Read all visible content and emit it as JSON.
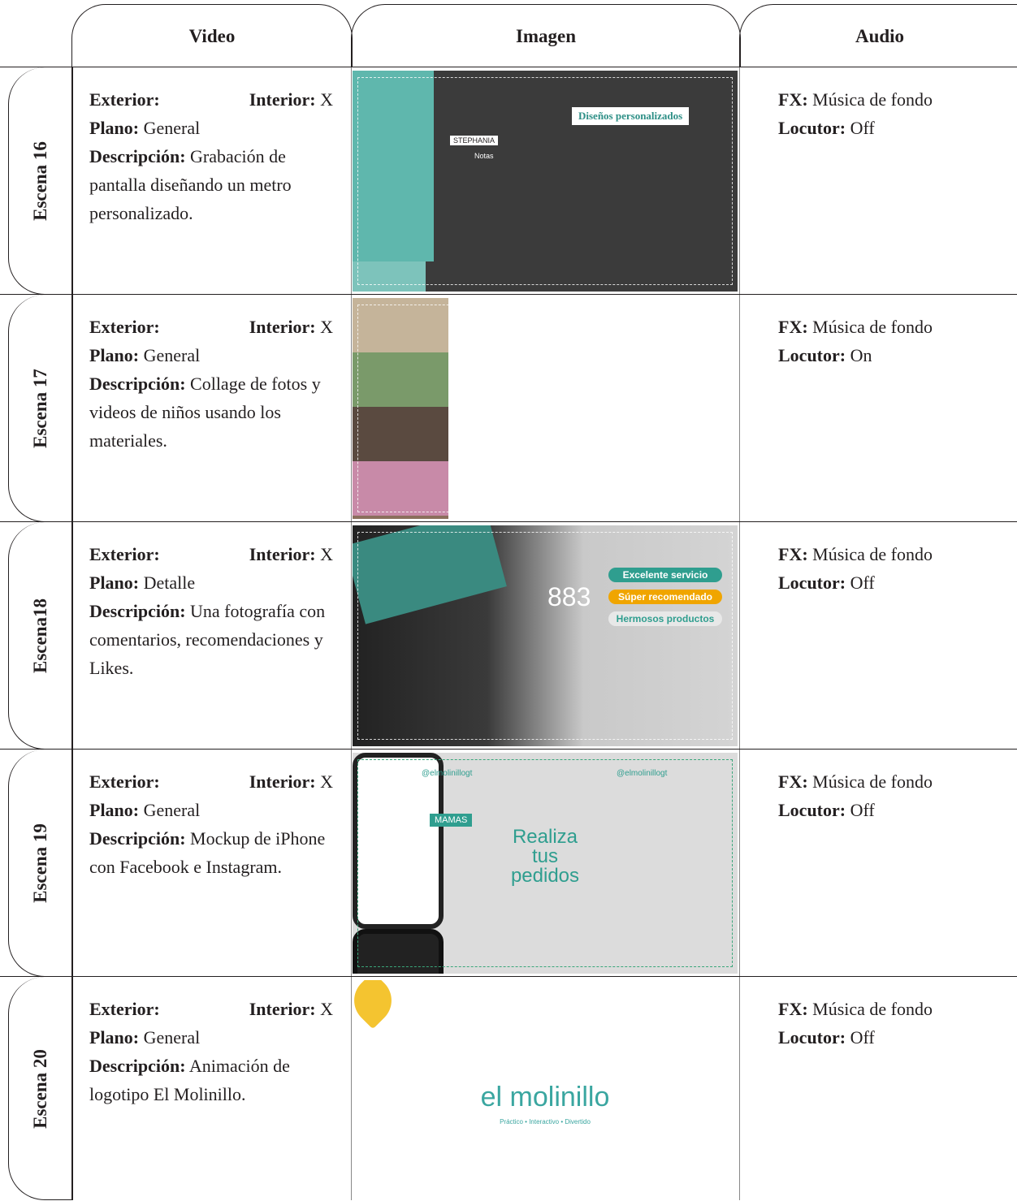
{
  "header": {
    "video": "Video",
    "imagen": "Imagen",
    "audio": "Audio"
  },
  "scenes": [
    {
      "label": "Escena 16",
      "exterior": "Exterior:",
      "interior_label": "Interior:",
      "interior": "X",
      "plano_label": "Plano:",
      "plano": "General",
      "descripcion_label": "Descripción:",
      "descripcion": "Grabación de pantalla diseñando un metro personalizado.",
      "fx_label": "FX:",
      "fx": "Música de fondo",
      "locutor_label": "Locutor:",
      "locutor": "Off",
      "image_texts": [
        "Diseños personalizados",
        "STEPHANIA",
        "Notas"
      ]
    },
    {
      "label": "Escena 17",
      "exterior": "Exterior:",
      "interior_label": "Interior:",
      "interior": "X",
      "plano_label": "Plano:",
      "plano": "General",
      "descripcion_label": "Descripción:",
      "descripcion": "Collage de fotos y videos de niños usando los materiales.",
      "fx_label": "FX:",
      "fx": "Música de fondo",
      "locutor_label": "Locutor:",
      "locutor": "On",
      "image_texts": []
    },
    {
      "label": "Escena18",
      "exterior": "Exterior:",
      "interior_label": "Interior:",
      "interior": "X",
      "plano_label": "Plano:",
      "plano": "Detalle",
      "descripcion_label": "Descripción:",
      "descripcion": "Una fotografía con comentarios, recomendaciones y Likes.",
      "fx_label": "FX:",
      "fx": "Música de fondo",
      "locutor_label": "Locutor:",
      "locutor": "Off",
      "image_texts": [
        "883",
        "Excelente servicio",
        "Súper recomendado",
        "Hermosos productos"
      ]
    },
    {
      "label": "Escena 19",
      "exterior": "Exterior:",
      "interior_label": "Interior:",
      "interior": "X",
      "plano_label": "Plano:",
      "plano": "General",
      "descripcion_label": "Descripción:",
      "descripcion": "Mockup de iPhone con Facebook e Instagram.",
      "fx_label": "FX:",
      "fx": "Música de fondo",
      "locutor_label": "Locutor:",
      "locutor": "Off",
      "image_texts": [
        "@elmolinillogt",
        "@elmolinillogt",
        "Realiza",
        "tus",
        "pedidos",
        "MAMAS"
      ]
    },
    {
      "label": "Escena 20",
      "exterior": "Exterior:",
      "interior_label": "Interior:",
      "interior": "X",
      "plano_label": "Plano:",
      "plano": "General",
      "descripcion_label": "Descripción:",
      "descripcion": "Animación de logotipo El Molinillo.",
      "fx_label": "FX:",
      "fx": "Música de fondo",
      "locutor_label": "Locutor:",
      "locutor": "Off",
      "image_texts": [
        "el molinillo",
        "Práctico • Interactivo • Divertido"
      ]
    }
  ]
}
